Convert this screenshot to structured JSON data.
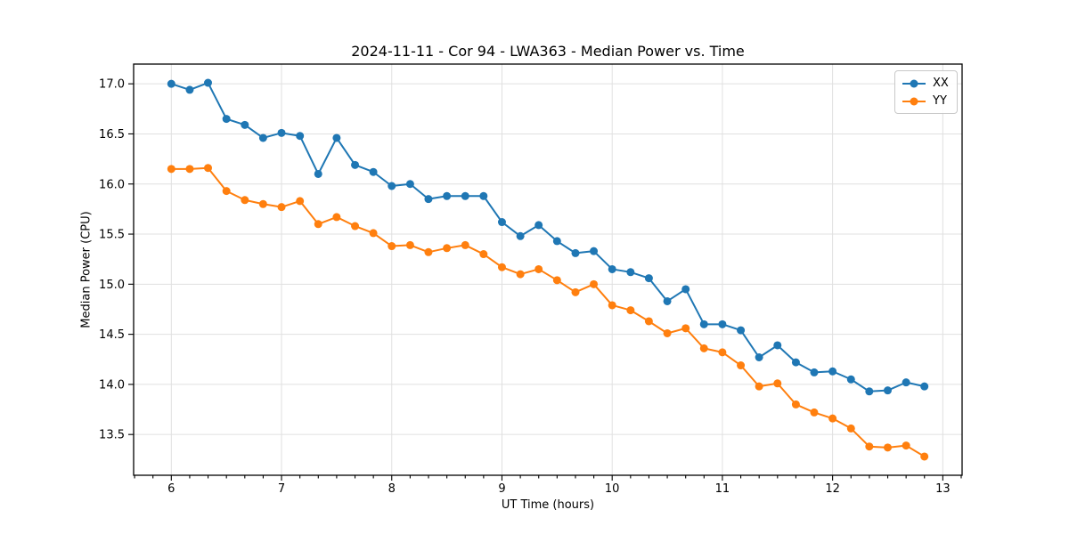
{
  "chart_data": {
    "type": "line",
    "title": "2024-11-11 - Cor 94 - LWA363 - Median Power vs. Time",
    "xlabel": "UT Time (hours)",
    "ylabel": "Median Power (CPU)",
    "xlim": [
      5.658,
      13.175
    ],
    "ylim": [
      13.093,
      17.197
    ],
    "x_ticks": [
      6,
      7,
      8,
      9,
      10,
      11,
      12,
      13
    ],
    "y_ticks": [
      13.5,
      14.0,
      14.5,
      15.0,
      15.5,
      16.0,
      16.5,
      17.0
    ],
    "minor_x_tick_step": 0.16667,
    "grid": true,
    "grid_color": "#e0e0e0",
    "legend_position": "upper right",
    "x": [
      6,
      6.167,
      6.333,
      6.5,
      6.667,
      6.833,
      7,
      7.167,
      7.333,
      7.5,
      7.667,
      7.833,
      8,
      8.167,
      8.333,
      8.5,
      8.667,
      8.833,
      9,
      9.167,
      9.333,
      9.5,
      9.667,
      9.833,
      10,
      10.167,
      10.333,
      10.5,
      10.667,
      10.833,
      11,
      11.167,
      11.333,
      11.5,
      11.667,
      11.833,
      12,
      12.167,
      12.333,
      12.5,
      12.667,
      12.833
    ],
    "series": [
      {
        "name": "XX",
        "color": "#1f77b4",
        "values": [
          17.0,
          16.94,
          17.01,
          16.65,
          16.59,
          16.46,
          16.51,
          16.48,
          16.1,
          16.46,
          16.19,
          16.12,
          15.98,
          16.0,
          15.85,
          15.88,
          15.88,
          15.88,
          15.62,
          15.48,
          15.59,
          15.43,
          15.31,
          15.33,
          15.15,
          15.12,
          15.06,
          14.83,
          14.95,
          14.6,
          14.6,
          14.54,
          14.27,
          14.39,
          14.22,
          14.12,
          14.13,
          14.05,
          13.93,
          13.94,
          14.02,
          13.98
        ]
      },
      {
        "name": "YY",
        "color": "#ff7f0e",
        "values": [
          16.15,
          16.15,
          16.16,
          15.93,
          15.84,
          15.8,
          15.77,
          15.83,
          15.6,
          15.67,
          15.58,
          15.51,
          15.38,
          15.39,
          15.32,
          15.36,
          15.39,
          15.3,
          15.17,
          15.1,
          15.15,
          15.04,
          14.92,
          15.0,
          14.79,
          14.74,
          14.63,
          14.51,
          14.56,
          14.36,
          14.32,
          14.19,
          13.98,
          14.01,
          13.8,
          13.72,
          13.66,
          13.56,
          13.38,
          13.37,
          13.39,
          13.28
        ]
      }
    ]
  }
}
